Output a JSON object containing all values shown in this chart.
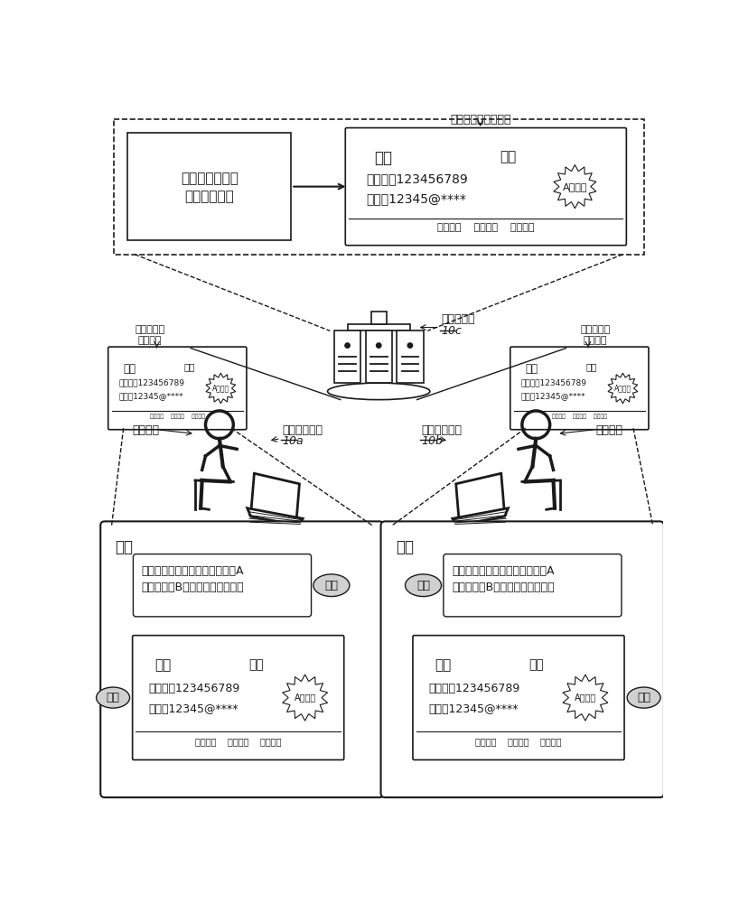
{
  "bg_color": "#ffffff",
  "line_color": "#1a1a1a",
  "text_color": "#1a1a1a",
  "card_title": "张三",
  "card_country": "中国",
  "card_phone": "手机号：123456789",
  "card_email": "邮箱：12345@****",
  "card_footer": "免费拿样    接受定制    生产可视",
  "card_badge": "A级认证",
  "top_box_text1": "第二用户所属的",
  "top_box_text2": "目标用户类别",
  "top_label": "第二用户的电子名片",
  "server_label": "服务端设备",
  "server_id": "10c",
  "left_card_label1": "第二用户的",
  "left_card_label2": "电子名片",
  "right_card_label1": "第二用户的",
  "right_card_label2": "电子名片",
  "user1_label": "第一用户",
  "user2_label": "第二用户",
  "terminal1_label": "第一终端设备",
  "terminal1_id": "10a",
  "terminal2_label": "第二终端设备",
  "terminal2_id": "10b",
  "chat_msg_line1": "我想订购您新推出的手表，请问A",
  "chat_msg_line2": "型号手表和B型号手表有折扣吗？",
  "left_screen_title": "张三",
  "right_screen_title": "季四",
  "avatar_jisi": "季四",
  "avatar_zhangsan": "张三"
}
